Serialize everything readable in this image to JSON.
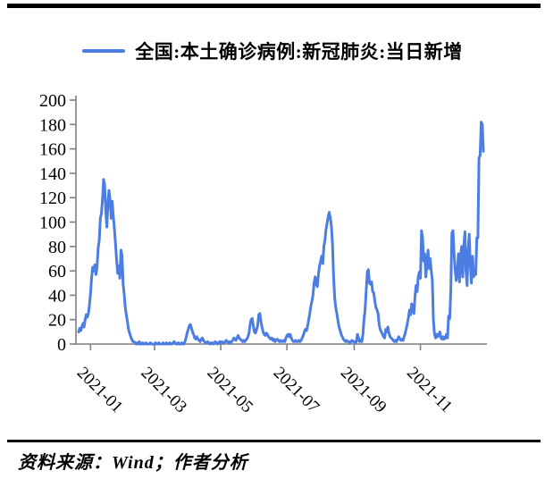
{
  "legend": {
    "label": "全国:本土确诊病例:新冠肺炎:当日新增"
  },
  "footer": {
    "source_text": "资料来源：Wind；作者分析"
  },
  "chart_data": {
    "type": "line",
    "title": "",
    "xlabel": "",
    "ylabel": "",
    "grid": false,
    "legend_position": "top",
    "axis_color": "#7f7f7f",
    "tick_label_color": "#000000",
    "ylim": [
      0,
      200
    ],
    "y_ticks": [
      0,
      20,
      40,
      60,
      80,
      100,
      120,
      140,
      160,
      180,
      200
    ],
    "x_tick_labels": [
      "2021-01",
      "2021-03",
      "2021-05",
      "2021-07",
      "2021-09",
      "2021-11"
    ],
    "series": [
      {
        "name": "全国:本土确诊病例:新冠肺炎:当日新增",
        "color": "#4b7de2",
        "frequency": "daily",
        "start_date": "2020-12-21",
        "end_date": "2021-12-29",
        "values": [
          10,
          13,
          11,
          14,
          17,
          14,
          20,
          24,
          22,
          25,
          32,
          42,
          55,
          63,
          60,
          65,
          57,
          63,
          79,
          85,
          103,
          107,
          118,
          135,
          131,
          109,
          96,
          115,
          126,
          118,
          103,
          117,
          104,
          94,
          82,
          69,
          58,
          64,
          54,
          77,
          73,
          49,
          41,
          30,
          24,
          18,
          12,
          9,
          6,
          4,
          2,
          2,
          1,
          0,
          1,
          0,
          2,
          0,
          0,
          1,
          0,
          0,
          1,
          0,
          0,
          0,
          1,
          0,
          0,
          0,
          0,
          1,
          0,
          0,
          1,
          0,
          0,
          0,
          1,
          0,
          0,
          1,
          0,
          0,
          1,
          0,
          0,
          1,
          2,
          1,
          0,
          0,
          1,
          0,
          0,
          1,
          0,
          0,
          2,
          5,
          9,
          12,
          15,
          16,
          13,
          10,
          8,
          5,
          4,
          6,
          4,
          3,
          2,
          4,
          5,
          3,
          2,
          1,
          1,
          2,
          1,
          0,
          1,
          1,
          0,
          1,
          2,
          1,
          0,
          1,
          2,
          1,
          2,
          1,
          1,
          2,
          3,
          2,
          1,
          2,
          1,
          2,
          3,
          5,
          4,
          3,
          5,
          7,
          5,
          4,
          3,
          2,
          3,
          2,
          3,
          4,
          6,
          9,
          16,
          20,
          21,
          15,
          10,
          9,
          12,
          15,
          24,
          25,
          19,
          14,
          10,
          8,
          7,
          9,
          8,
          6,
          5,
          4,
          5,
          3,
          4,
          2,
          3,
          4,
          3,
          2,
          3,
          2,
          2,
          3,
          2,
          5,
          7,
          8,
          6,
          8,
          5,
          3,
          2,
          2,
          3,
          2,
          2,
          3,
          2,
          3,
          5,
          7,
          10,
          12,
          11,
          15,
          20,
          25,
          31,
          35,
          40,
          50,
          55,
          49,
          47,
          57,
          64,
          68,
          72,
          66,
          80,
          85,
          94,
          99,
          104,
          108,
          103,
          96,
          81,
          55,
          38,
          30,
          25,
          19,
          14,
          11,
          8,
          6,
          4,
          3,
          2,
          3,
          2,
          2,
          1,
          2,
          3,
          2,
          2,
          1,
          2,
          8,
          5,
          2,
          3,
          2,
          8,
          20,
          28,
          43,
          59,
          61,
          50,
          49,
          51,
          43,
          42,
          35,
          30,
          28,
          25,
          16,
          12,
          10,
          8,
          6,
          5,
          12,
          10,
          14,
          9,
          6,
          5,
          4,
          3,
          2,
          3,
          2,
          4,
          6,
          4,
          3,
          4,
          3,
          6,
          9,
          13,
          17,
          22,
          28,
          24,
          33,
          29,
          25,
          39,
          48,
          43,
          55,
          59,
          54,
          93,
          87,
          68,
          74,
          55,
          65,
          77,
          62,
          70,
          60,
          52,
          20,
          8,
          5,
          8,
          6,
          8,
          10,
          5,
          4,
          6,
          4,
          5,
          8,
          5,
          23,
          21,
          45,
          91,
          93,
          75,
          61,
          52,
          60,
          74,
          51,
          72,
          80,
          55,
          80,
          92,
          60,
          48,
          77,
          90,
          65,
          50,
          72,
          55,
          60,
          57,
          87,
          87,
          152,
          155,
          182,
          180,
          158
        ]
      }
    ]
  }
}
